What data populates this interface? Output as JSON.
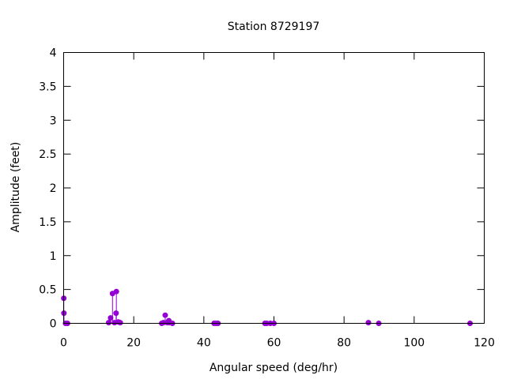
{
  "chart_data": {
    "type": "scatter",
    "style": "impulses-with-points",
    "title": "Station 8729197",
    "xlabel": "Angular speed (deg/hr)",
    "ylabel": "Amplitude (feet)",
    "xlim": [
      0,
      120
    ],
    "ylim": [
      0,
      4
    ],
    "xticks": [
      "0",
      "20",
      "40",
      "60",
      "80",
      "100",
      "120"
    ],
    "yticks": [
      "0",
      "0.5",
      "1",
      "1.5",
      "2",
      "2.5",
      "3",
      "3.5",
      "4"
    ],
    "grid": false,
    "color": "#9400d3",
    "points": [
      {
        "x": 0.04,
        "y": 0.37
      },
      {
        "x": 0.08,
        "y": 0.15
      },
      {
        "x": 0.54,
        "y": 0.0
      },
      {
        "x": 1.1,
        "y": 0.0
      },
      {
        "x": 12.85,
        "y": 0.01
      },
      {
        "x": 13.4,
        "y": 0.08
      },
      {
        "x": 13.94,
        "y": 0.44
      },
      {
        "x": 14.5,
        "y": 0.01
      },
      {
        "x": 14.96,
        "y": 0.15
      },
      {
        "x": 15.04,
        "y": 0.47
      },
      {
        "x": 15.59,
        "y": 0.02
      },
      {
        "x": 16.14,
        "y": 0.01
      },
      {
        "x": 27.97,
        "y": 0.0
      },
      {
        "x": 28.44,
        "y": 0.01
      },
      {
        "x": 28.98,
        "y": 0.12
      },
      {
        "x": 29.53,
        "y": 0.01
      },
      {
        "x": 30.0,
        "y": 0.04
      },
      {
        "x": 30.08,
        "y": 0.01
      },
      {
        "x": 31.02,
        "y": 0.0
      },
      {
        "x": 42.93,
        "y": 0.0
      },
      {
        "x": 43.48,
        "y": 0.0
      },
      {
        "x": 44.03,
        "y": 0.0
      },
      {
        "x": 57.42,
        "y": 0.0
      },
      {
        "x": 57.97,
        "y": 0.0
      },
      {
        "x": 58.98,
        "y": 0.0
      },
      {
        "x": 60.0,
        "y": 0.0
      },
      {
        "x": 86.95,
        "y": 0.01
      },
      {
        "x": 89.9,
        "y": 0.0
      },
      {
        "x": 115.94,
        "y": 0.0
      }
    ]
  }
}
